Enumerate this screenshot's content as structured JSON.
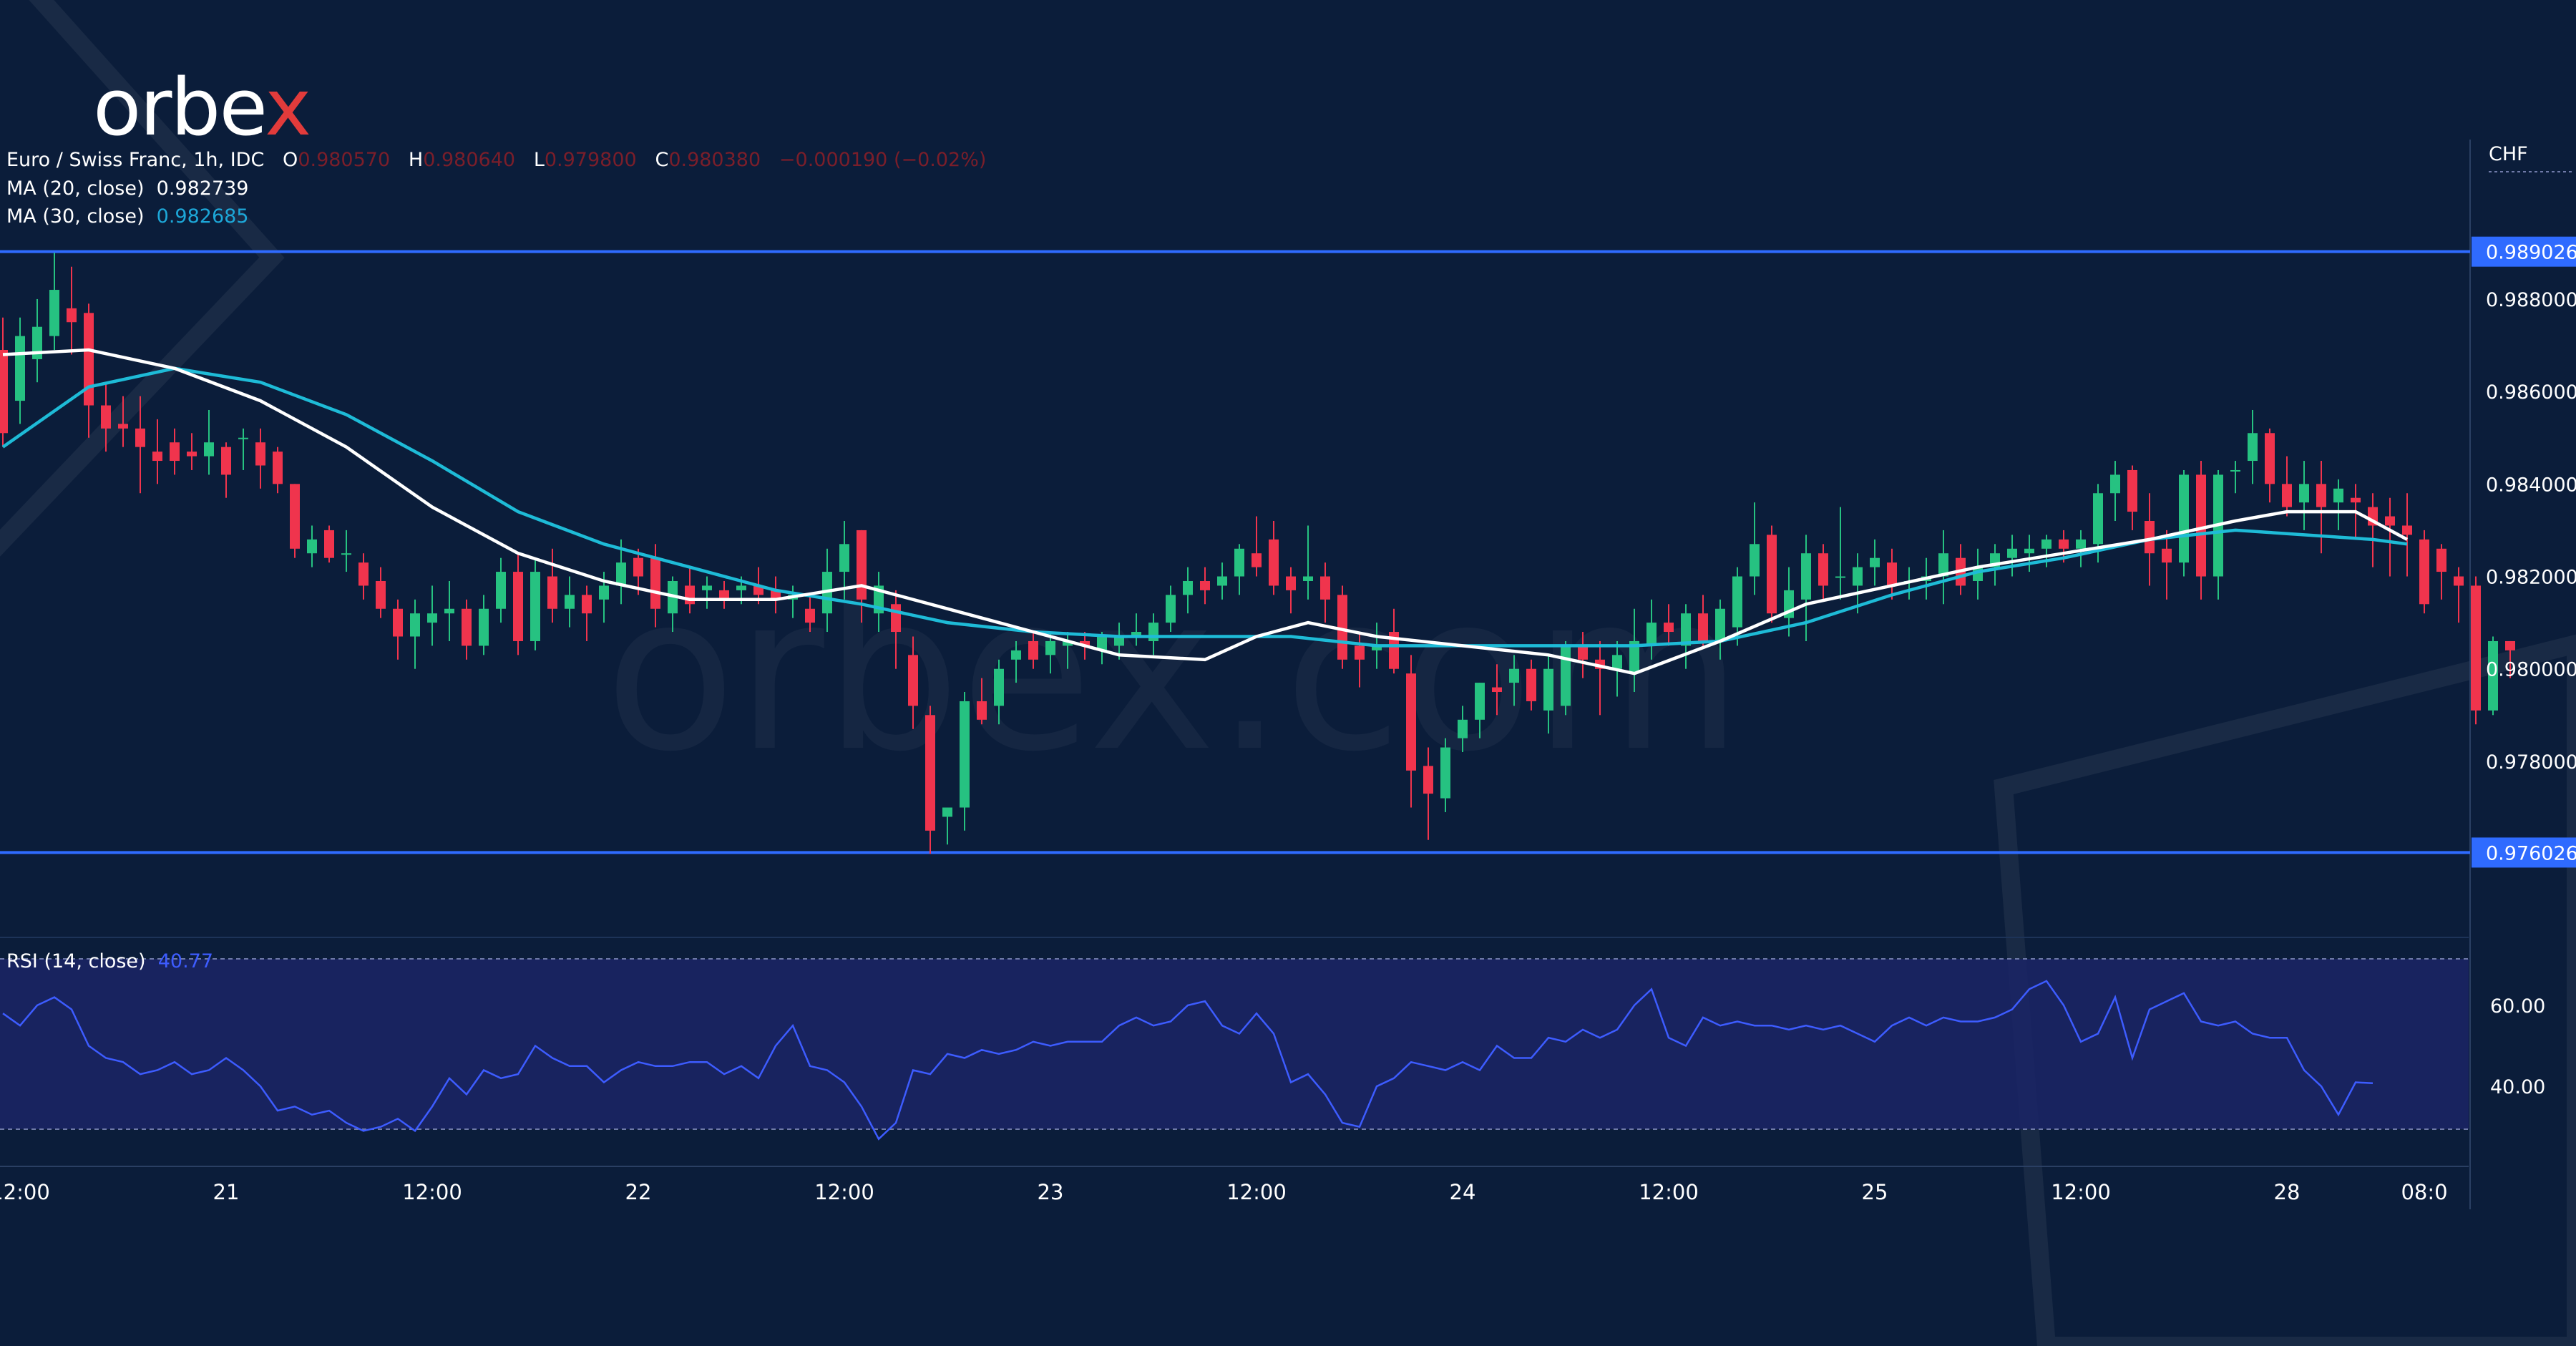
{
  "brand": {
    "logo_left": "orbe",
    "logo_x": "x",
    "watermark": "orbex.com"
  },
  "colors": {
    "background": "#0b1d3a",
    "up": "#26c281",
    "down": "#f0344d",
    "ma20": "#ffffff",
    "ma30": "#1ebbd7",
    "rsi": "#3d5cff",
    "hline": "#2f6bff",
    "rsi_band": "#1b2466"
  },
  "legend": {
    "symbol": "Euro / Swiss Franc, 1h, IDC",
    "o_label": "O",
    "o_value": "0.980570",
    "h_label": "H",
    "h_value": "0.980640",
    "l_label": "L",
    "l_value": "0.979800",
    "c_label": "C",
    "c_value": "0.980380",
    "change": "−0.000190 (−0.02%)",
    "ma20_label": "MA (20, close)",
    "ma20_value": "0.982739",
    "ma30_label": "MA (30, close)",
    "ma30_value": "0.982685",
    "rsi_label": "RSI (14, close)",
    "rsi_value": "40.77"
  },
  "chart_data": {
    "type": "candlestick",
    "currency": "CHF",
    "price_ticks": [
      "0.988000",
      "0.986000",
      "0.984000",
      "0.982000",
      "0.980000",
      "0.978000"
    ],
    "price_tick_values": [
      0.988,
      0.986,
      0.984,
      0.982,
      0.98,
      0.978
    ],
    "price_range": [
      0.9745,
      0.9906
    ],
    "horizontal_lines": [
      {
        "label": "0.989026",
        "value": 0.989026
      },
      {
        "label": "0.976026",
        "value": 0.976026
      }
    ],
    "x_ticks": [
      "12:00",
      "21",
      "12:00",
      "22",
      "12:00",
      "23",
      "12:00",
      "24",
      "12:00",
      "25",
      "12:00",
      "28",
      "08:0"
    ],
    "x_tick_index": [
      1,
      13,
      25,
      37,
      49,
      61,
      73,
      85,
      97,
      109,
      121,
      133,
      141
    ],
    "candles": [
      [
        0.9869,
        0.9876,
        0.9848,
        0.9851
      ],
      [
        0.9858,
        0.9876,
        0.9853,
        0.9872
      ],
      [
        0.9867,
        0.988,
        0.9862,
        0.9874
      ],
      [
        0.9872,
        0.989,
        0.9869,
        0.9882
      ],
      [
        0.9878,
        0.9887,
        0.9868,
        0.9875
      ],
      [
        0.9877,
        0.9879,
        0.985,
        0.9857
      ],
      [
        0.9857,
        0.9862,
        0.9847,
        0.9852
      ],
      [
        0.9853,
        0.9859,
        0.9848,
        0.9852
      ],
      [
        0.9852,
        0.9859,
        0.9838,
        0.9848
      ],
      [
        0.9847,
        0.9854,
        0.984,
        0.9845
      ],
      [
        0.9849,
        0.9852,
        0.9842,
        0.9845
      ],
      [
        0.9847,
        0.9851,
        0.9843,
        0.9846
      ],
      [
        0.9846,
        0.9856,
        0.9842,
        0.9849
      ],
      [
        0.9848,
        0.9849,
        0.9837,
        0.9842
      ],
      [
        0.985,
        0.9852,
        0.9843,
        0.985
      ],
      [
        0.9849,
        0.9852,
        0.9839,
        0.9844
      ],
      [
        0.9847,
        0.9848,
        0.9838,
        0.984
      ],
      [
        0.984,
        0.984,
        0.9824,
        0.9826
      ],
      [
        0.9825,
        0.9831,
        0.9822,
        0.9828
      ],
      [
        0.983,
        0.9831,
        0.9823,
        0.9824
      ],
      [
        0.9825,
        0.983,
        0.9821,
        0.9825
      ],
      [
        0.9823,
        0.9825,
        0.9815,
        0.9818
      ],
      [
        0.9819,
        0.9822,
        0.9811,
        0.9813
      ],
      [
        0.9813,
        0.9815,
        0.9802,
        0.9807
      ],
      [
        0.9807,
        0.9815,
        0.98,
        0.9812
      ],
      [
        0.981,
        0.9818,
        0.9805,
        0.9812
      ],
      [
        0.9812,
        0.9819,
        0.9806,
        0.9813
      ],
      [
        0.9813,
        0.9815,
        0.9802,
        0.9805
      ],
      [
        0.9805,
        0.9816,
        0.9803,
        0.9813
      ],
      [
        0.9813,
        0.9824,
        0.981,
        0.9821
      ],
      [
        0.9821,
        0.9825,
        0.9803,
        0.9806
      ],
      [
        0.9806,
        0.9824,
        0.9804,
        0.9821
      ],
      [
        0.982,
        0.9826,
        0.981,
        0.9813
      ],
      [
        0.9813,
        0.982,
        0.9809,
        0.9816
      ],
      [
        0.9816,
        0.9818,
        0.9806,
        0.9812
      ],
      [
        0.9815,
        0.9821,
        0.981,
        0.9818
      ],
      [
        0.9818,
        0.9828,
        0.9814,
        0.9823
      ],
      [
        0.9824,
        0.9826,
        0.9816,
        0.982
      ],
      [
        0.9824,
        0.9827,
        0.9809,
        0.9813
      ],
      [
        0.9812,
        0.982,
        0.9808,
        0.9819
      ],
      [
        0.9818,
        0.9822,
        0.9812,
        0.9814
      ],
      [
        0.9817,
        0.982,
        0.9813,
        0.9818
      ],
      [
        0.9817,
        0.9819,
        0.9813,
        0.9815
      ],
      [
        0.9817,
        0.982,
        0.9814,
        0.9818
      ],
      [
        0.9818,
        0.9822,
        0.9814,
        0.9816
      ],
      [
        0.9817,
        0.982,
        0.9812,
        0.9815
      ],
      [
        0.9815,
        0.9818,
        0.9811,
        0.9816
      ],
      [
        0.9813,
        0.9816,
        0.9808,
        0.981
      ],
      [
        0.9812,
        0.9826,
        0.9808,
        0.9821
      ],
      [
        0.9821,
        0.9832,
        0.9815,
        0.9827
      ],
      [
        0.983,
        0.983,
        0.981,
        0.9815
      ],
      [
        0.9812,
        0.9821,
        0.9808,
        0.9818
      ],
      [
        0.9814,
        0.9817,
        0.98,
        0.9808
      ],
      [
        0.9803,
        0.9807,
        0.9787,
        0.9792
      ],
      [
        0.979,
        0.9792,
        0.976,
        0.9765
      ],
      [
        0.9768,
        0.977,
        0.9762,
        0.977
      ],
      [
        0.977,
        0.9795,
        0.9765,
        0.9793
      ],
      [
        0.9793,
        0.9798,
        0.9788,
        0.9789
      ],
      [
        0.9792,
        0.9802,
        0.9788,
        0.98
      ],
      [
        0.9802,
        0.9806,
        0.9797,
        0.9804
      ],
      [
        0.9806,
        0.9808,
        0.98,
        0.9802
      ],
      [
        0.9803,
        0.9808,
        0.9799,
        0.9806
      ],
      [
        0.9805,
        0.9808,
        0.98,
        0.9806
      ],
      [
        0.9806,
        0.9808,
        0.9802,
        0.9805
      ],
      [
        0.9804,
        0.9808,
        0.9801,
        0.9807
      ],
      [
        0.9805,
        0.981,
        0.9802,
        0.9807
      ],
      [
        0.9807,
        0.9812,
        0.9805,
        0.9808
      ],
      [
        0.9806,
        0.9812,
        0.9803,
        0.981
      ],
      [
        0.981,
        0.9818,
        0.9808,
        0.9816
      ],
      [
        0.9816,
        0.9822,
        0.9812,
        0.9819
      ],
      [
        0.9819,
        0.9822,
        0.9814,
        0.9817
      ],
      [
        0.9818,
        0.9823,
        0.9815,
        0.982
      ],
      [
        0.982,
        0.9827,
        0.9816,
        0.9826
      ],
      [
        0.9825,
        0.9833,
        0.982,
        0.9822
      ],
      [
        0.9828,
        0.9832,
        0.9816,
        0.9818
      ],
      [
        0.982,
        0.9822,
        0.9812,
        0.9817
      ],
      [
        0.9819,
        0.9831,
        0.9815,
        0.982
      ],
      [
        0.982,
        0.9823,
        0.981,
        0.9815
      ],
      [
        0.9816,
        0.9818,
        0.98,
        0.9802
      ],
      [
        0.9805,
        0.9808,
        0.9796,
        0.9802
      ],
      [
        0.9804,
        0.981,
        0.98,
        0.9805
      ],
      [
        0.9808,
        0.9813,
        0.9799,
        0.98
      ],
      [
        0.9799,
        0.9803,
        0.977,
        0.9778
      ],
      [
        0.9779,
        0.9783,
        0.9763,
        0.9773
      ],
      [
        0.9772,
        0.9785,
        0.9769,
        0.9783
      ],
      [
        0.9785,
        0.9792,
        0.9782,
        0.9789
      ],
      [
        0.9789,
        0.9797,
        0.9785,
        0.9797
      ],
      [
        0.9796,
        0.9801,
        0.979,
        0.9795
      ],
      [
        0.9797,
        0.9803,
        0.9792,
        0.98
      ],
      [
        0.98,
        0.9802,
        0.9791,
        0.9793
      ],
      [
        0.9791,
        0.9803,
        0.9786,
        0.98
      ],
      [
        0.9792,
        0.9806,
        0.979,
        0.9805
      ],
      [
        0.9805,
        0.9808,
        0.9798,
        0.9802
      ],
      [
        0.9802,
        0.9806,
        0.979,
        0.98
      ],
      [
        0.98,
        0.9806,
        0.9794,
        0.9803
      ],
      [
        0.9799,
        0.9813,
        0.9795,
        0.9806
      ],
      [
        0.9805,
        0.9815,
        0.9802,
        0.981
      ],
      [
        0.981,
        0.9814,
        0.9805,
        0.9808
      ],
      [
        0.9805,
        0.9814,
        0.98,
        0.9812
      ],
      [
        0.9812,
        0.9816,
        0.9805,
        0.9806
      ],
      [
        0.9806,
        0.9815,
        0.9802,
        0.9813
      ],
      [
        0.9809,
        0.9822,
        0.9805,
        0.982
      ],
      [
        0.982,
        0.9836,
        0.9816,
        0.9827
      ],
      [
        0.9829,
        0.9831,
        0.981,
        0.9812
      ],
      [
        0.9811,
        0.9822,
        0.9807,
        0.9817
      ],
      [
        0.9815,
        0.9829,
        0.9806,
        0.9825
      ],
      [
        0.9825,
        0.9827,
        0.9815,
        0.9818
      ],
      [
        0.982,
        0.9835,
        0.9815,
        0.982
      ],
      [
        0.9818,
        0.9825,
        0.9812,
        0.9822
      ],
      [
        0.9822,
        0.9828,
        0.9818,
        0.9824
      ],
      [
        0.9823,
        0.9826,
        0.9815,
        0.9818
      ],
      [
        0.9819,
        0.9822,
        0.9815,
        0.9819
      ],
      [
        0.9819,
        0.9824,
        0.9815,
        0.982
      ],
      [
        0.982,
        0.983,
        0.9814,
        0.9825
      ],
      [
        0.9824,
        0.9827,
        0.9816,
        0.9818
      ],
      [
        0.9819,
        0.9826,
        0.9815,
        0.9822
      ],
      [
        0.9822,
        0.9827,
        0.9818,
        0.9825
      ],
      [
        0.9824,
        0.9829,
        0.982,
        0.9826
      ],
      [
        0.9825,
        0.9829,
        0.9821,
        0.9826
      ],
      [
        0.9826,
        0.9829,
        0.9822,
        0.9828
      ],
      [
        0.9828,
        0.983,
        0.9823,
        0.9826
      ],
      [
        0.9826,
        0.983,
        0.9822,
        0.9828
      ],
      [
        0.9827,
        0.984,
        0.9823,
        0.9838
      ],
      [
        0.9838,
        0.9845,
        0.9832,
        0.9842
      ],
      [
        0.9843,
        0.9844,
        0.983,
        0.9834
      ],
      [
        0.9832,
        0.9838,
        0.9818,
        0.9825
      ],
      [
        0.9826,
        0.983,
        0.9815,
        0.9823
      ],
      [
        0.9823,
        0.9843,
        0.982,
        0.9842
      ],
      [
        0.9842,
        0.9845,
        0.9815,
        0.982
      ],
      [
        0.982,
        0.9843,
        0.9815,
        0.9842
      ],
      [
        0.9843,
        0.9845,
        0.9838,
        0.9843
      ],
      [
        0.9845,
        0.9856,
        0.984,
        0.9851
      ],
      [
        0.9851,
        0.9852,
        0.9836,
        0.984
      ],
      [
        0.984,
        0.9846,
        0.9833,
        0.9835
      ],
      [
        0.9836,
        0.9845,
        0.983,
        0.984
      ],
      [
        0.984,
        0.9845,
        0.9825,
        0.9835
      ],
      [
        0.9836,
        0.9841,
        0.983,
        0.9839
      ],
      [
        0.9837,
        0.984,
        0.9828,
        0.9836
      ],
      [
        0.9835,
        0.9838,
        0.9822,
        0.9831
      ],
      [
        0.9833,
        0.9837,
        0.982,
        0.9831
      ],
      [
        0.9831,
        0.9838,
        0.982,
        0.9829
      ],
      [
        0.9828,
        0.983,
        0.9812,
        0.9814
      ],
      [
        0.9826,
        0.9827,
        0.9815,
        0.9821
      ],
      [
        0.982,
        0.9822,
        0.981,
        0.9818
      ],
      [
        0.9818,
        0.982,
        0.9788,
        0.9791
      ],
      [
        0.9791,
        0.9807,
        0.979,
        0.9806
      ],
      [
        0.9806,
        0.9806,
        0.9798,
        0.9804
      ]
    ],
    "ma20": [
      [
        0,
        0.9868
      ],
      [
        5,
        0.9869
      ],
      [
        10,
        0.9865
      ],
      [
        15,
        0.9858
      ],
      [
        20,
        0.9848
      ],
      [
        25,
        0.9835
      ],
      [
        30,
        0.9825
      ],
      [
        35,
        0.9819
      ],
      [
        40,
        0.9815
      ],
      [
        45,
        0.9815
      ],
      [
        50,
        0.9818
      ],
      [
        55,
        0.9813
      ],
      [
        60,
        0.9808
      ],
      [
        65,
        0.9803
      ],
      [
        70,
        0.9802
      ],
      [
        73,
        0.9807
      ],
      [
        76,
        0.981
      ],
      [
        80,
        0.9807
      ],
      [
        85,
        0.9805
      ],
      [
        90,
        0.9803
      ],
      [
        95,
        0.9799
      ],
      [
        100,
        0.9806
      ],
      [
        105,
        0.9814
      ],
      [
        110,
        0.9818
      ],
      [
        115,
        0.9822
      ],
      [
        120,
        0.9825
      ],
      [
        125,
        0.9828
      ],
      [
        130,
        0.9832
      ],
      [
        133,
        0.9834
      ],
      [
        137,
        0.9834
      ],
      [
        140,
        0.9828
      ]
    ],
    "ma30": [
      [
        0,
        0.9848
      ],
      [
        5,
        0.9861
      ],
      [
        10,
        0.9865
      ],
      [
        15,
        0.9862
      ],
      [
        20,
        0.9855
      ],
      [
        25,
        0.9845
      ],
      [
        30,
        0.9834
      ],
      [
        35,
        0.9827
      ],
      [
        40,
        0.9822
      ],
      [
        45,
        0.9817
      ],
      [
        50,
        0.9814
      ],
      [
        55,
        0.981
      ],
      [
        60,
        0.9808
      ],
      [
        65,
        0.9807
      ],
      [
        70,
        0.9807
      ],
      [
        75,
        0.9807
      ],
      [
        80,
        0.9805
      ],
      [
        85,
        0.9805
      ],
      [
        90,
        0.9805
      ],
      [
        95,
        0.9805
      ],
      [
        100,
        0.9806
      ],
      [
        105,
        0.981
      ],
      [
        110,
        0.9816
      ],
      [
        115,
        0.9821
      ],
      [
        120,
        0.9824
      ],
      [
        125,
        0.9828
      ],
      [
        130,
        0.983
      ],
      [
        134,
        0.9829
      ],
      [
        138,
        0.9828
      ],
      [
        140,
        0.9827
      ]
    ],
    "rsi": {
      "ticks": [
        "60.00",
        "40.00"
      ],
      "tick_values": [
        60,
        40
      ],
      "band": [
        30,
        70
      ],
      "range": [
        22,
        75
      ],
      "values": [
        58,
        55,
        60,
        62,
        59,
        50,
        47,
        46,
        43,
        44,
        46,
        43,
        44,
        47,
        44,
        40,
        34,
        35,
        33,
        34,
        31,
        29,
        30,
        32,
        29,
        35,
        42,
        38,
        44,
        42,
        43,
        50,
        47,
        45,
        45,
        41,
        44,
        46,
        45,
        45,
        46,
        46,
        43,
        45,
        42,
        50,
        55,
        45,
        44,
        41,
        35,
        27,
        31,
        44,
        43,
        48,
        47,
        49,
        48,
        49,
        51,
        50,
        51,
        51,
        51,
        55,
        57,
        55,
        56,
        60,
        61,
        55,
        53,
        58,
        53,
        41,
        43,
        38,
        31,
        30,
        40,
        42,
        46,
        45,
        44,
        46,
        44,
        50,
        47,
        47,
        52,
        51,
        54,
        52,
        54,
        60,
        64,
        52,
        50,
        57,
        55,
        56,
        55,
        55,
        54,
        55,
        54,
        55,
        53,
        51,
        55,
        57,
        55,
        57,
        56,
        56,
        57,
        59,
        64,
        66,
        60,
        51,
        53,
        62,
        47,
        59,
        61,
        63,
        56,
        55,
        56,
        53,
        52,
        52,
        44,
        40,
        33,
        41,
        40.77
      ]
    }
  }
}
